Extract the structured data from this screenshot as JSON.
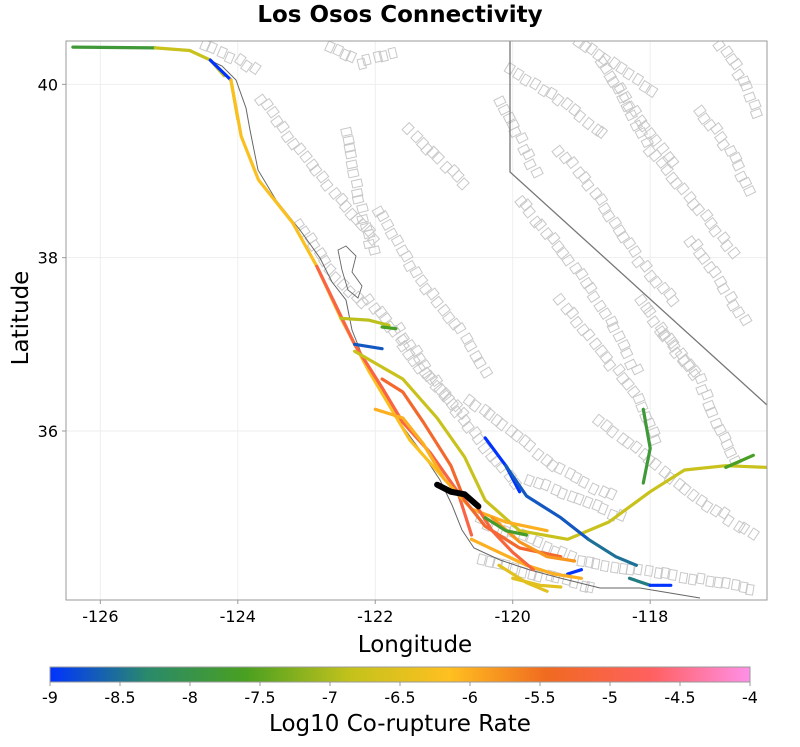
{
  "title": "Los Osos Connectivity",
  "x_axis": {
    "label": "Longitude",
    "range": [
      -126.5,
      -116.3
    ],
    "ticks": [
      "-126",
      "-124",
      "-122",
      "-120",
      "-118"
    ],
    "tick_values": [
      -126,
      -124,
      -122,
      -120,
      -118
    ]
  },
  "y_axis": {
    "label": "Latitude",
    "range": [
      34.05,
      40.5
    ],
    "ticks": [
      "36",
      "38",
      "40"
    ],
    "tick_values": [
      36,
      38,
      40
    ]
  },
  "colorbar": {
    "label": "Log10 Co-rupture Rate",
    "ticks": [
      "-9",
      "-8.5",
      "-8",
      "-7.5",
      "-7",
      "-6.5",
      "-6",
      "-5.5",
      "-5",
      "-4.5",
      "-4"
    ],
    "range": [
      -9,
      -4
    ],
    "colors": [
      "#0033ff",
      "#2a8a6a",
      "#4aa020",
      "#c4c21c",
      "#ffc020",
      "#f06a20",
      "#ff6060",
      "#ff90e8"
    ]
  },
  "chart_data": {
    "type": "map",
    "title": "Los Osos Connectivity",
    "xlabel": "Longitude",
    "ylabel": "Latitude",
    "xlim": [
      -126.5,
      -116.3
    ],
    "ylim": [
      34.05,
      40.5
    ],
    "grid": true,
    "colorbar_label": "Log10 Co-rupture Rate",
    "colorbar_range": [
      -9,
      -4
    ],
    "source_fault": {
      "name": "",
      "color": "#000000",
      "path": [
        [
          -121.1,
          35.38
        ],
        [
          -120.9,
          35.3
        ],
        [
          -120.7,
          35.27
        ],
        [
          -120.5,
          35.13
        ]
      ]
    },
    "fault_traces": [
      {
        "rate": -7.8,
        "path": [
          [
            -126.4,
            40.43
          ],
          [
            -125.2,
            40.42
          ]
        ]
      },
      {
        "rate": -6.8,
        "path": [
          [
            -125.2,
            40.42
          ],
          [
            -124.7,
            40.39
          ],
          [
            -124.4,
            40.28
          ],
          [
            -124.2,
            40.1
          ]
        ]
      },
      {
        "rate": -9.0,
        "path": [
          [
            -124.4,
            40.28
          ],
          [
            -124.1,
            40.05
          ]
        ]
      },
      {
        "rate": -6.9,
        "path": [
          [
            -124.1,
            40.05
          ],
          [
            -124.0,
            39.6
          ]
        ]
      },
      {
        "rate": -6.2,
        "path": [
          [
            -124.1,
            40.05
          ],
          [
            -123.95,
            39.4
          ],
          [
            -123.7,
            38.9
          ],
          [
            -123.2,
            38.4
          ],
          [
            -122.85,
            37.9
          ],
          [
            -122.5,
            37.3
          ],
          [
            -122.1,
            36.7
          ],
          [
            -121.5,
            35.9
          ],
          [
            -121.0,
            35.45
          ]
        ]
      },
      {
        "rate": -5.0,
        "path": [
          [
            -122.85,
            37.9
          ],
          [
            -122.3,
            37.0
          ],
          [
            -121.9,
            36.5
          ],
          [
            -121.6,
            36.1
          ],
          [
            -121.2,
            35.75
          ],
          [
            -120.8,
            35.3
          ],
          [
            -120.6,
            34.8
          ]
        ]
      },
      {
        "rate": -6.8,
        "path": [
          [
            -122.3,
            36.92
          ],
          [
            -121.6,
            36.6
          ],
          [
            -121.1,
            36.15
          ],
          [
            -120.7,
            35.7
          ],
          [
            -120.4,
            35.2
          ],
          [
            -119.9,
            34.85
          ],
          [
            -119.2,
            34.75
          ],
          [
            -118.6,
            34.95
          ],
          [
            -118.0,
            35.3
          ],
          [
            -117.5,
            35.55
          ],
          [
            -116.9,
            35.6
          ],
          [
            -116.3,
            35.58
          ]
        ]
      },
      {
        "rate": -7.8,
        "path": [
          [
            -118.1,
            36.25
          ],
          [
            -118.0,
            35.8
          ],
          [
            -118.1,
            35.4
          ]
        ]
      },
      {
        "rate": -7.6,
        "path": [
          [
            -116.5,
            35.72
          ],
          [
            -116.9,
            35.58
          ]
        ]
      },
      {
        "rate": -6.9,
        "path": [
          [
            -122.5,
            37.3
          ],
          [
            -122.1,
            37.28
          ],
          [
            -121.8,
            37.22
          ]
        ]
      },
      {
        "rate": -7.6,
        "path": [
          [
            -121.9,
            37.2
          ],
          [
            -121.7,
            37.18
          ]
        ]
      },
      {
        "rate": -8.7,
        "path": [
          [
            -122.3,
            37.0
          ],
          [
            -121.9,
            36.95
          ]
        ]
      },
      {
        "rate": -6.0,
        "path": [
          [
            -122.0,
            36.25
          ],
          [
            -121.6,
            36.15
          ],
          [
            -121.3,
            35.85
          ],
          [
            -121.0,
            35.45
          ],
          [
            -120.6,
            35.1
          ],
          [
            -120.1,
            34.95
          ],
          [
            -119.5,
            34.85
          ]
        ]
      },
      {
        "rate": -5.3,
        "path": [
          [
            -121.9,
            36.6
          ],
          [
            -121.6,
            36.45
          ],
          [
            -121.3,
            36.1
          ],
          [
            -120.9,
            35.6
          ],
          [
            -120.7,
            35.2
          ],
          [
            -120.4,
            34.9
          ],
          [
            -119.9,
            34.65
          ],
          [
            -119.3,
            34.55
          ]
        ]
      },
      {
        "rate": -9.0,
        "path": [
          [
            -120.4,
            35.92
          ],
          [
            -120.1,
            35.6
          ],
          [
            -119.9,
            35.3
          ]
        ]
      },
      {
        "rate": -8.7,
        "path": [
          [
            -120.1,
            35.6
          ],
          [
            -119.8,
            35.25
          ],
          [
            -119.3,
            35.0
          ],
          [
            -118.9,
            34.75
          ]
        ]
      },
      {
        "rate": -8.5,
        "path": [
          [
            -118.9,
            34.75
          ],
          [
            -118.5,
            34.55
          ],
          [
            -118.2,
            34.45
          ]
        ]
      },
      {
        "rate": -8.4,
        "path": [
          [
            -118.3,
            34.3
          ],
          [
            -118.0,
            34.22
          ]
        ]
      },
      {
        "rate": -9.0,
        "path": [
          [
            -118.0,
            34.22
          ],
          [
            -117.7,
            34.22
          ]
        ]
      },
      {
        "rate": -9.0,
        "path": [
          [
            -119.2,
            34.35
          ],
          [
            -119.0,
            34.4
          ]
        ]
      },
      {
        "rate": -6.0,
        "path": [
          [
            -120.6,
            34.75
          ],
          [
            -120.2,
            34.6
          ],
          [
            -119.8,
            34.45
          ],
          [
            -119.4,
            34.35
          ],
          [
            -119.0,
            34.3
          ]
        ]
      },
      {
        "rate": -5.8,
        "path": [
          [
            -120.3,
            35.0
          ],
          [
            -119.9,
            34.72
          ],
          [
            -119.5,
            34.55
          ],
          [
            -119.1,
            34.5
          ]
        ]
      },
      {
        "rate": -6.5,
        "path": [
          [
            -120.2,
            34.45
          ],
          [
            -119.8,
            34.25
          ],
          [
            -119.5,
            34.15
          ]
        ]
      },
      {
        "rate": -5.1,
        "path": [
          [
            -120.5,
            35.1
          ],
          [
            -120.3,
            34.85
          ],
          [
            -120.0,
            34.6
          ],
          [
            -119.7,
            34.4
          ]
        ]
      },
      {
        "rate": -6.5,
        "path": [
          [
            -120.0,
            34.3
          ],
          [
            -119.6,
            34.22
          ],
          [
            -119.3,
            34.2
          ]
        ]
      },
      {
        "rate": -7.7,
        "path": [
          [
            -120.4,
            35.0
          ],
          [
            -120.1,
            34.85
          ],
          [
            -119.8,
            34.8
          ]
        ]
      }
    ]
  }
}
